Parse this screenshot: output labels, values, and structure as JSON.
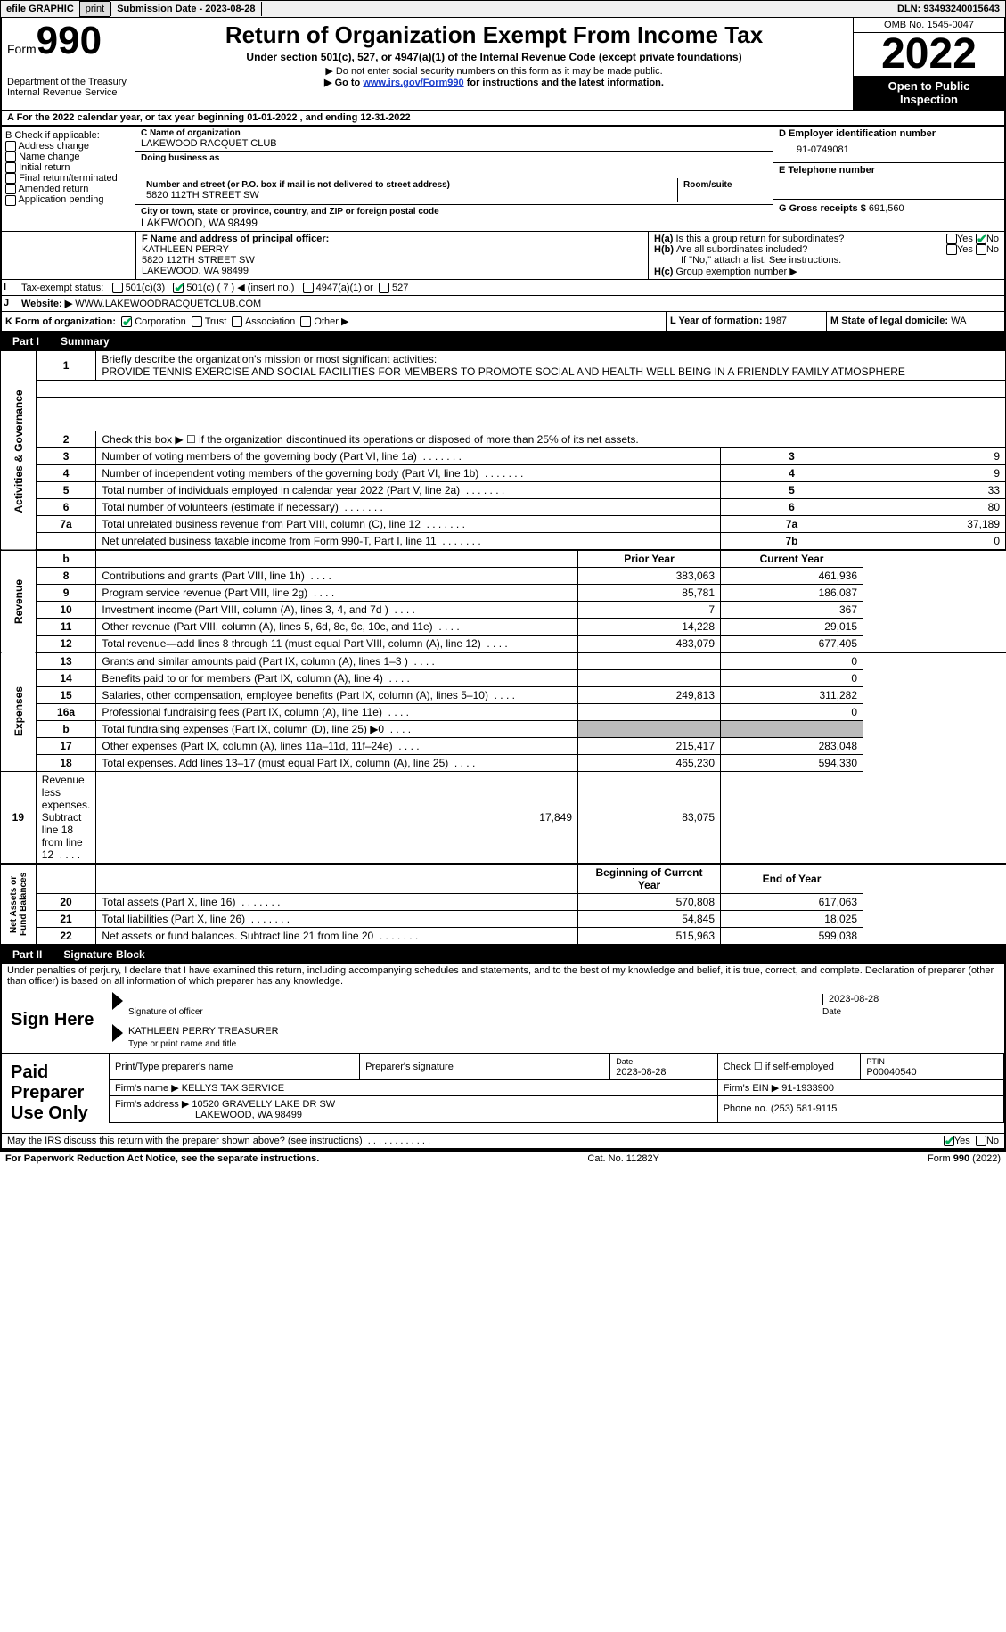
{
  "topbar": {
    "efile_label": "efile GRAPHIC",
    "print_btn": "print",
    "submission_label": "Submission Date - 2023-08-28",
    "dln_label": "DLN: 93493240015643"
  },
  "header": {
    "form_word": "Form",
    "form_num": "990",
    "dept": "Department of the Treasury",
    "irs": "Internal Revenue Service",
    "title": "Return of Organization Exempt From Income Tax",
    "sub1": "Under section 501(c), 527, or 4947(a)(1) of the Internal Revenue Code (except private foundations)",
    "sub2": "Do not enter social security numbers on this form as it may be made public.",
    "sub3_pre": "Go to ",
    "sub3_link": "www.irs.gov/Form990",
    "sub3_post": " for instructions and the latest information.",
    "omb": "OMB No. 1545-0047",
    "year": "2022",
    "inspect1": "Open to Public",
    "inspect2": "Inspection"
  },
  "rowA": "A For the 2022 calendar year, or tax year beginning 01-01-2022    , and ending 12-31-2022",
  "boxB": {
    "title": "B Check if applicable:",
    "items": [
      "Address change",
      "Name change",
      "Initial return",
      "Final return/terminated",
      "Amended return",
      "Application pending"
    ]
  },
  "boxC": {
    "name_label": "C Name of organization",
    "name": "LAKEWOOD RACQUET CLUB",
    "dba_label": "Doing business as",
    "addr_label": "Number and street (or P.O. box if mail is not delivered to street address)",
    "room_label": "Room/suite",
    "addr": "5820 112TH STREET SW",
    "city_label": "City or town, state or province, country, and ZIP or foreign postal code",
    "city": "LAKEWOOD, WA  98499"
  },
  "boxD": {
    "label": "D Employer identification number",
    "ein": "91-0749081"
  },
  "boxE": {
    "label": "E Telephone number",
    "val": ""
  },
  "boxG": {
    "label": "G Gross receipts $",
    "val": "691,560"
  },
  "boxF": {
    "label": "F Name and address of principal officer:",
    "name": "KATHLEEN PERRY",
    "addr1": "5820 112TH STREET SW",
    "addr2": "LAKEWOOD, WA  98499"
  },
  "boxH": {
    "a": "Is this a group return for subordinates?",
    "b": "Are all subordinates included?",
    "b_note": "If \"No,\" attach a list. See instructions.",
    "c": "Group exemption number ▶",
    "yes": "Yes",
    "no": "No"
  },
  "rowI": {
    "label": "Tax-exempt status:",
    "o1": "501(c)(3)",
    "o2": "501(c) ( 7 ) ◀ (insert no.)",
    "o3": "4947(a)(1) or",
    "o4": "527"
  },
  "rowJ": {
    "label": "Website: ▶",
    "val": "WWW.LAKEWOODRACQUETCLUB.COM"
  },
  "rowK": {
    "label": "K Form of organization:",
    "opts": [
      "Corporation",
      "Trust",
      "Association",
      "Other ▶"
    ]
  },
  "rowL": {
    "label": "L Year of formation:",
    "val": "1987"
  },
  "rowM": {
    "label": "M State of legal domicile:",
    "val": "WA"
  },
  "part1": {
    "tab": "Part I",
    "title": "Summary"
  },
  "summary": {
    "l1_label": "Briefly describe the organization's mission or most significant activities:",
    "l1_text": "PROVIDE TENNIS EXERCISE AND SOCIAL FACILITIES FOR MEMBERS TO PROMOTE SOCIAL AND HEALTH WELL BEING IN A FRIENDLY FAMILY ATMOSPHERE",
    "l2": "Check this box ▶ ☐ if the organization discontinued its operations or disposed of more than 25% of its net assets.",
    "rows": [
      {
        "n": "3",
        "t": "Number of voting members of the governing body (Part VI, line 1a)",
        "box": "3",
        "v": "9"
      },
      {
        "n": "4",
        "t": "Number of independent voting members of the governing body (Part VI, line 1b)",
        "box": "4",
        "v": "9"
      },
      {
        "n": "5",
        "t": "Total number of individuals employed in calendar year 2022 (Part V, line 2a)",
        "box": "5",
        "v": "33"
      },
      {
        "n": "6",
        "t": "Total number of volunteers (estimate if necessary)",
        "box": "6",
        "v": "80"
      },
      {
        "n": "7a",
        "t": "Total unrelated business revenue from Part VIII, column (C), line 12",
        "box": "7a",
        "v": "37,189"
      },
      {
        "n": "",
        "t": "Net unrelated business taxable income from Form 990-T, Part I, line 11",
        "box": "7b",
        "v": "0"
      }
    ],
    "col_prior": "Prior Year",
    "col_curr": "Current Year",
    "vlabels": {
      "ag": "Activities & Governance",
      "rev": "Revenue",
      "exp": "Expenses",
      "na": "Net Assets or\nFund Balances"
    },
    "revenue": [
      {
        "n": "8",
        "t": "Contributions and grants (Part VIII, line 1h)",
        "p": "383,063",
        "c": "461,936"
      },
      {
        "n": "9",
        "t": "Program service revenue (Part VIII, line 2g)",
        "p": "85,781",
        "c": "186,087"
      },
      {
        "n": "10",
        "t": "Investment income (Part VIII, column (A), lines 3, 4, and 7d )",
        "p": "7",
        "c": "367"
      },
      {
        "n": "11",
        "t": "Other revenue (Part VIII, column (A), lines 5, 6d, 8c, 9c, 10c, and 11e)",
        "p": "14,228",
        "c": "29,015"
      },
      {
        "n": "12",
        "t": "Total revenue—add lines 8 through 11 (must equal Part VIII, column (A), line 12)",
        "p": "483,079",
        "c": "677,405"
      }
    ],
    "expenses": [
      {
        "n": "13",
        "t": "Grants and similar amounts paid (Part IX, column (A), lines 1–3 )",
        "p": "",
        "c": "0"
      },
      {
        "n": "14",
        "t": "Benefits paid to or for members (Part IX, column (A), line 4)",
        "p": "",
        "c": "0"
      },
      {
        "n": "15",
        "t": "Salaries, other compensation, employee benefits (Part IX, column (A), lines 5–10)",
        "p": "249,813",
        "c": "311,282"
      },
      {
        "n": "16a",
        "t": "Professional fundraising fees (Part IX, column (A), line 11e)",
        "p": "",
        "c": "0"
      },
      {
        "n": "b",
        "t": "Total fundraising expenses (Part IX, column (D), line 25) ▶0",
        "p": "SHADE",
        "c": "SHADE"
      },
      {
        "n": "17",
        "t": "Other expenses (Part IX, column (A), lines 11a–11d, 11f–24e)",
        "p": "215,417",
        "c": "283,048"
      },
      {
        "n": "18",
        "t": "Total expenses. Add lines 13–17 (must equal Part IX, column (A), line 25)",
        "p": "465,230",
        "c": "594,330"
      },
      {
        "n": "19",
        "t": "Revenue less expenses. Subtract line 18 from line 12",
        "p": "17,849",
        "c": "83,075"
      }
    ],
    "col_begin": "Beginning of Current Year",
    "col_end": "End of Year",
    "netassets": [
      {
        "n": "20",
        "t": "Total assets (Part X, line 16)",
        "p": "570,808",
        "c": "617,063"
      },
      {
        "n": "21",
        "t": "Total liabilities (Part X, line 26)",
        "p": "54,845",
        "c": "18,025"
      },
      {
        "n": "22",
        "t": "Net assets or fund balances. Subtract line 21 from line 20",
        "p": "515,963",
        "c": "599,038"
      }
    ]
  },
  "part2": {
    "tab": "Part II",
    "title": "Signature Block",
    "decl": "Under penalties of perjury, I declare that I have examined this return, including accompanying schedules and statements, and to the best of my knowledge and belief, it is true, correct, and complete. Declaration of preparer (other than officer) is based on all information of which preparer has any knowledge."
  },
  "sign": {
    "here": "Sign Here",
    "sig_of_officer": "Signature of officer",
    "date": "Date",
    "sig_date": "2023-08-28",
    "name_title_label": "Type or print name and title",
    "name_title": "KATHLEEN PERRY TREASURER"
  },
  "paid": {
    "title": "Paid Preparer Use Only",
    "h1": "Print/Type preparer's name",
    "h2": "Preparer's signature",
    "h3_label": "Date",
    "h3": "2023-08-28",
    "h4": "Check ☐ if self-employed",
    "h5_label": "PTIN",
    "h5": "P00040540",
    "firm_name_label": "Firm's name    ▶",
    "firm_name": "KELLYS TAX SERVICE",
    "firm_ein_label": "Firm's EIN ▶",
    "firm_ein": "91-1933900",
    "firm_addr_label": "Firm's address ▶",
    "firm_addr1": "10520 GRAVELLY LAKE DR SW",
    "firm_addr2": "LAKEWOOD, WA  98499",
    "phone_label": "Phone no.",
    "phone": "(253) 581-9115"
  },
  "discuss": {
    "q": "May the IRS discuss this return with the preparer shown above? (see instructions)",
    "yes": "Yes",
    "no": "No"
  },
  "footer": {
    "left": "For Paperwork Reduction Act Notice, see the separate instructions.",
    "mid": "Cat. No. 11282Y",
    "right": "Form 990 (2022)"
  },
  "colors": {
    "link": "#1a3dcc",
    "check": "#00aa55"
  }
}
